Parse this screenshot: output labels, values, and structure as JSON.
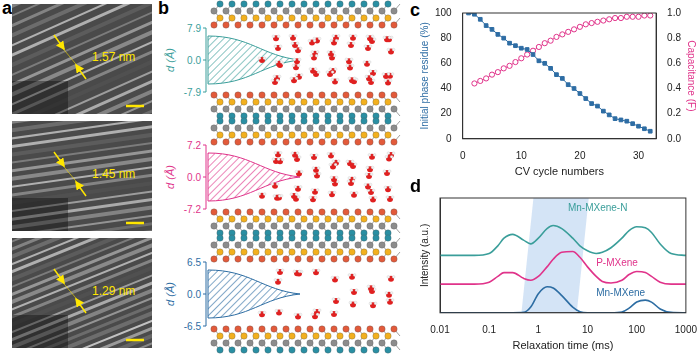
{
  "panels": [
    {
      "label": "a",
      "type": "image",
      "annotations": [
        "1.57 nm",
        "1.45 nm",
        "1.29 nm"
      ]
    },
    {
      "label": "b",
      "type": "diagram",
      "axis_label": "d (Å)",
      "plots": [
        {
          "color": "#3a9e9a",
          "ticks": [
            7.9,
            {
              "value": 0,
              "label": "0.0"
            },
            -7.9
          ]
        },
        {
          "color": "#e0338a",
          "ticks": [
            7.2,
            {
              "value": 0,
              "label": "0.0"
            },
            -7.2
          ]
        },
        {
          "color": "#2d6da3",
          "ticks": [
            6.5,
            {
              "value": 0,
              "label": "0.0"
            },
            -6.5
          ]
        }
      ]
    }
  ],
  "chart_data": [
    {
      "panel_label": "c",
      "type": "line",
      "x_label": "CV cycle numbers",
      "y_label": "Initial phase residue (%)",
      "y2_label": "Capacitance (F)",
      "x": [
        1,
        2,
        3,
        4,
        5,
        6,
        7,
        8,
        9,
        10,
        11,
        12,
        13,
        14,
        15,
        16,
        17,
        18,
        19,
        20,
        21,
        22,
        23,
        24,
        25,
        26,
        27,
        28,
        29,
        30,
        31,
        32
      ],
      "xlim": [
        0,
        33
      ],
      "xticks": [
        0,
        10,
        20,
        30
      ],
      "ylim": [
        0,
        100
      ],
      "yticks": [
        0,
        20,
        40,
        60,
        80,
        100
      ],
      "y2lim": [
        0,
        1
      ],
      "y2ticks": [
        {
          "value": 0,
          "label": "0.0"
        },
        0.2,
        0.4,
        0.6,
        0.8,
        {
          "value": 1,
          "label": "1.0"
        }
      ],
      "grid": false,
      "series": [
        {
          "name": "Initial phase residue",
          "color": "#2e6da4",
          "marker": "square",
          "line_style": "solid",
          "values": [
            100,
            99,
            95,
            90,
            87,
            83,
            80,
            76,
            74,
            72,
            71,
            67,
            62,
            60,
            56,
            51,
            48,
            43,
            40,
            36,
            32,
            28,
            26,
            22,
            19,
            16,
            15,
            14,
            12,
            10,
            8,
            6
          ]
        },
        {
          "name": "Capacitance",
          "color": "#e0338a",
          "marker": "open_circle",
          "line_style": "solid",
          "axis": "y2",
          "values": [
            null,
            0.44,
            0.46,
            0.48,
            0.51,
            0.53,
            0.56,
            0.58,
            0.61,
            0.64,
            0.67,
            0.7,
            0.73,
            0.76,
            0.78,
            0.81,
            0.83,
            0.85,
            0.87,
            0.89,
            0.91,
            0.92,
            0.93,
            0.94,
            0.95,
            0.96,
            0.96,
            0.97,
            0.97,
            0.97,
            0.98,
            0.98
          ]
        }
      ]
    },
    {
      "panel_label": "d",
      "type": "line",
      "log": "x",
      "x_label": "Relaxation time (ms)",
      "y_label": "Intensity (a.u.)",
      "x": [
        0.01,
        0.02,
        0.05,
        0.1,
        0.15,
        0.2,
        0.3,
        0.5,
        0.7,
        1,
        1.5,
        2,
        3,
        5,
        7,
        10,
        15,
        20,
        30,
        50,
        70,
        100,
        150,
        200,
        300,
        500,
        1000
      ],
      "xlim": [
        0.01,
        1000
      ],
      "xticks": [
        0.01,
        0.1,
        1,
        10,
        100,
        1000
      ],
      "ylim": [
        0,
        3
      ],
      "tick_labels": "x",
      "grid": false,
      "highlight": [
        0.6,
        8
      ],
      "series": [
        {
          "name": "Mn-MXene-N",
          "color": "#3a9e9a",
          "line_style": "solid",
          "values": [
            1.5,
            1.5,
            1.5,
            1.55,
            1.75,
            1.95,
            2.05,
            1.9,
            1.8,
            1.95,
            2.2,
            2.28,
            2.2,
            1.95,
            1.75,
            1.62,
            1.55,
            1.58,
            1.7,
            1.95,
            2.15,
            2.25,
            2.22,
            2.1,
            1.8,
            1.55,
            1.5
          ]
        },
        {
          "name": "P-MXene",
          "color": "#e0338a",
          "line_style": "solid",
          "values": [
            0.75,
            0.75,
            0.75,
            0.8,
            0.95,
            1.05,
            1.05,
            0.9,
            0.85,
            0.95,
            1.2,
            1.4,
            1.58,
            1.6,
            1.45,
            1.2,
            0.95,
            0.82,
            0.78,
            0.85,
            1.0,
            1.08,
            1.05,
            0.95,
            0.8,
            0.75,
            0.75
          ]
        },
        {
          "name": "Mn-MXene",
          "color": "#2d6da3",
          "line_style": "solid",
          "values": [
            0,
            0,
            0,
            0,
            0,
            0,
            0,
            0.01,
            0.15,
            0.5,
            0.68,
            0.65,
            0.45,
            0.15,
            0.03,
            0,
            0,
            0,
            0,
            0.02,
            0.12,
            0.28,
            0.33,
            0.28,
            0.1,
            0.01,
            0
          ]
        }
      ]
    }
  ]
}
